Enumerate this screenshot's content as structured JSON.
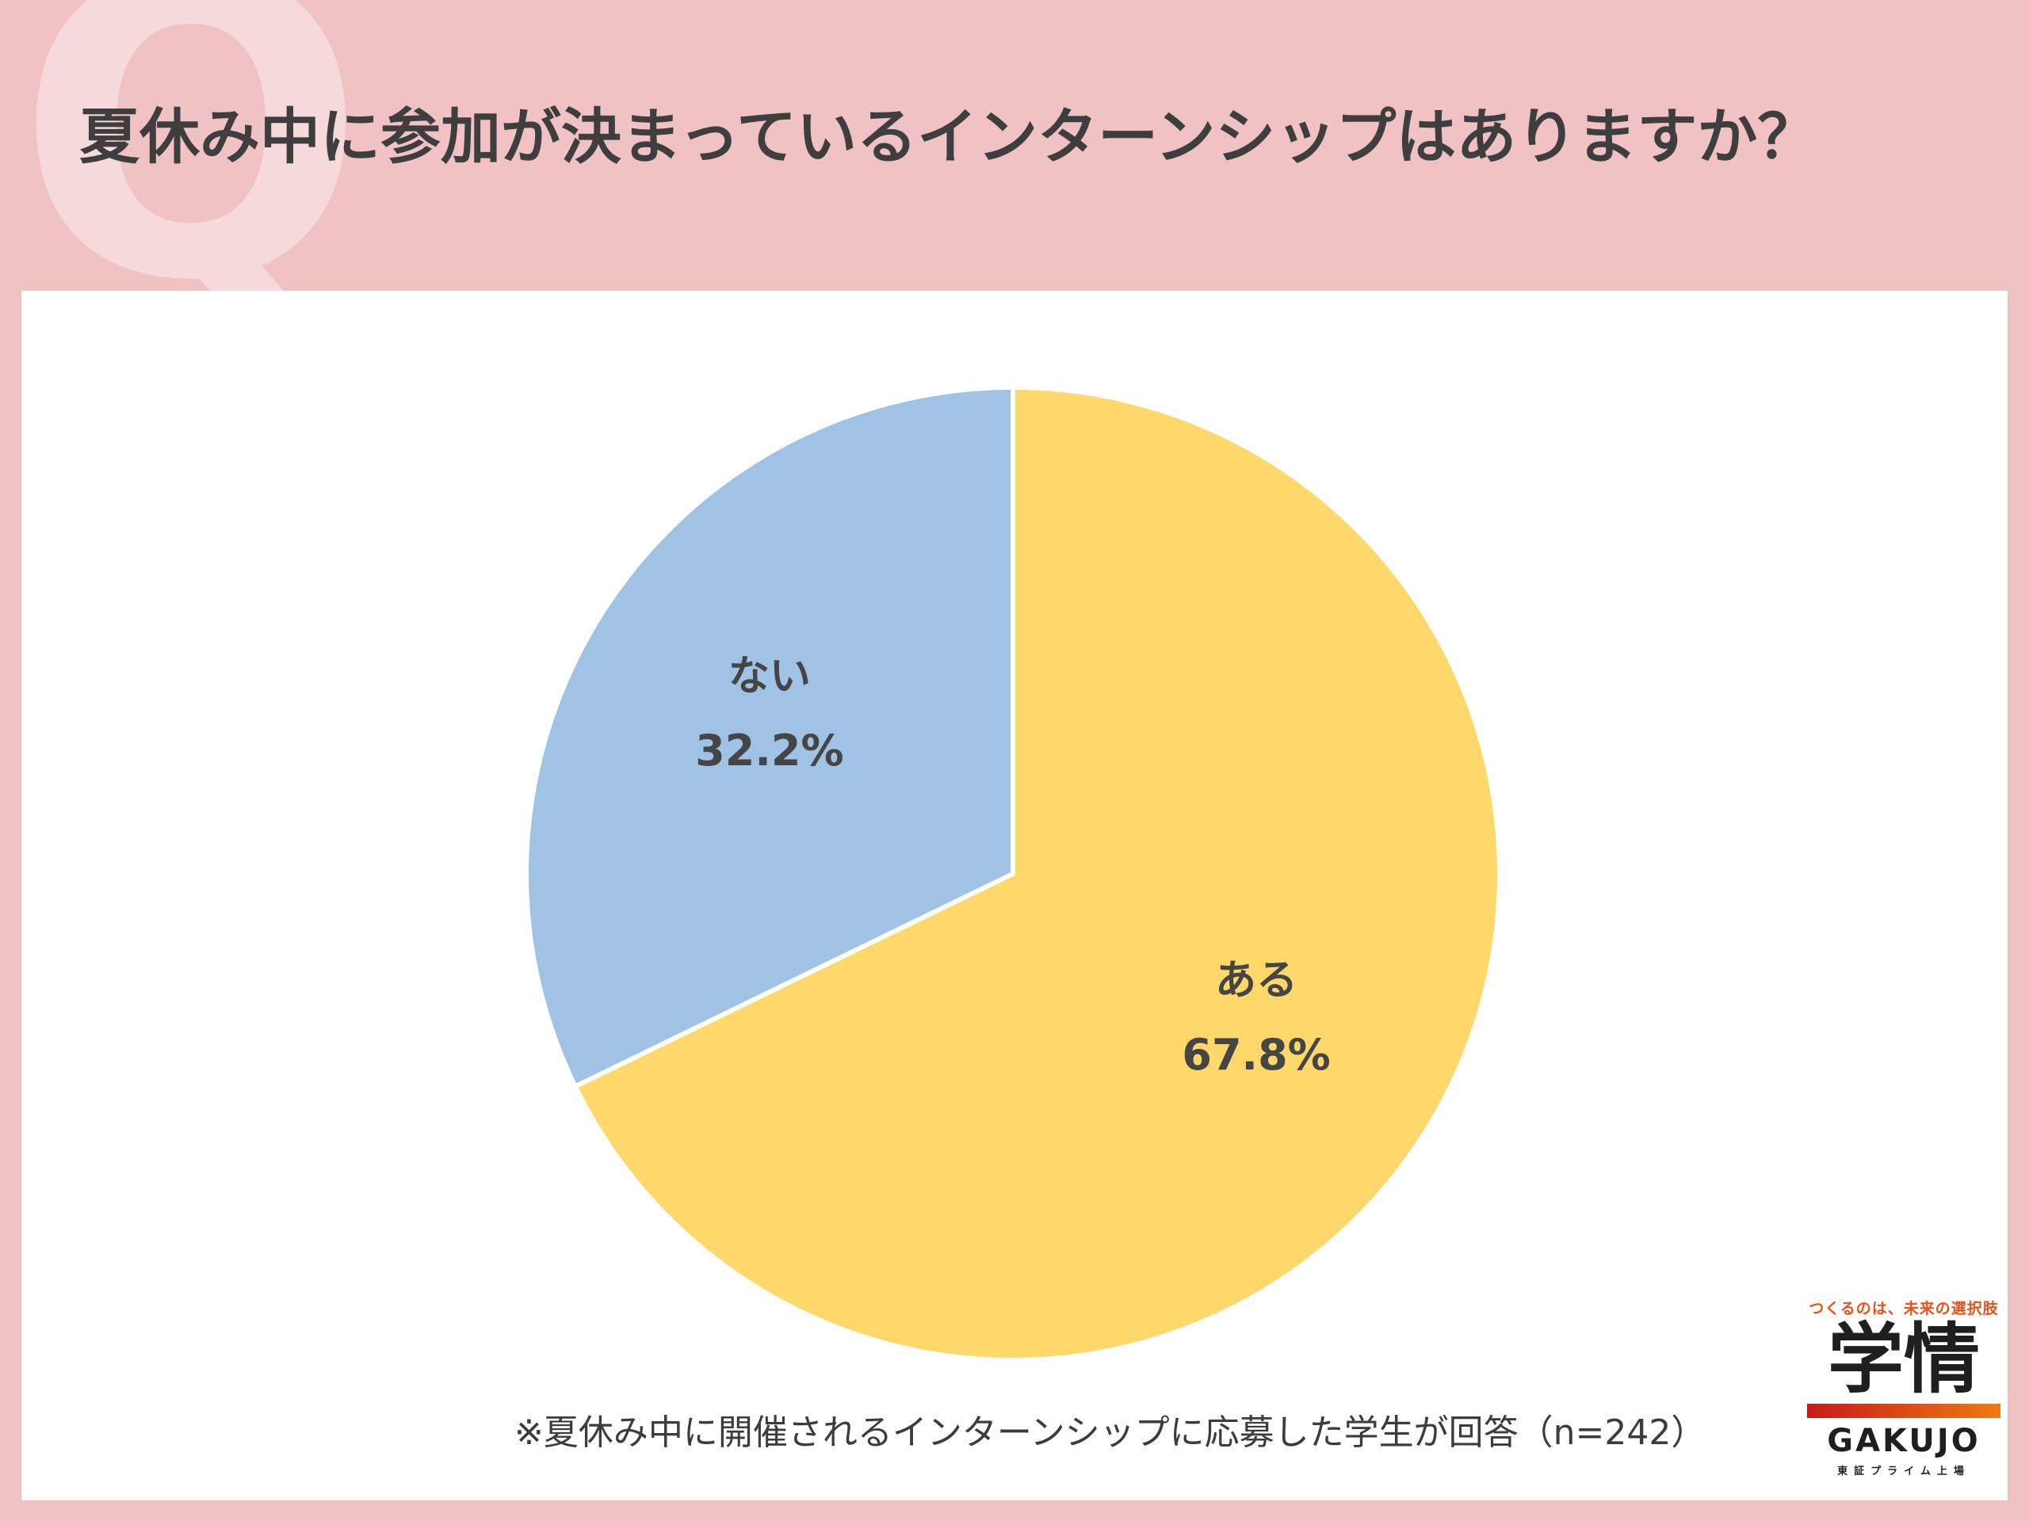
{
  "title": "夏休み中に参加が決まっているインターンシップはありますか？",
  "q_mark": "Q",
  "note": "※夏休み中に開催されるインターンシップに応募した学生が回答（n=242）",
  "logo": {
    "tagline": "つくるのは、未来の選択肢",
    "kanji": "学情",
    "en": "GAKUJO",
    "sub": "東証プライム上場"
  },
  "colors": {
    "background": "#f0c2c3",
    "slice_aru": "#fed86a",
    "slice_nai": "#9fc2e5",
    "label_text": "#454545"
  },
  "chart_data": {
    "type": "pie",
    "categories": [
      "ある",
      "ない"
    ],
    "values": [
      67.8,
      32.2
    ],
    "value_labels": [
      "67.8%",
      "32.2%"
    ],
    "colors": [
      "#fed86a",
      "#9fc2e5"
    ],
    "start": "12 o'clock, clockwise",
    "legend": "none (labels inside slices)",
    "sample_note": "n=242"
  }
}
